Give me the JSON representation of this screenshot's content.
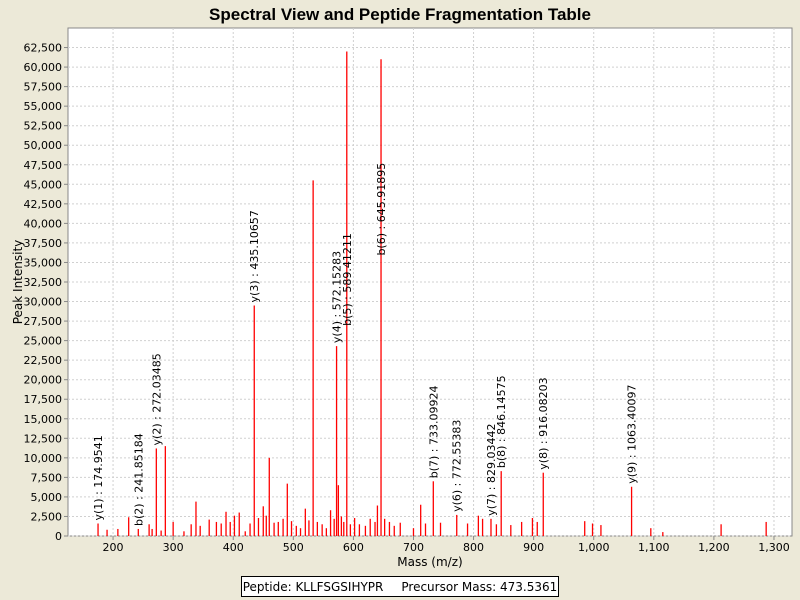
{
  "chart_data": {
    "type": "bar",
    "title": "Spectral View and Peptide Fragmentation Table",
    "xlabel": "Mass (m/z)",
    "ylabel": "Peak Intensity",
    "xlim": [
      125,
      1330
    ],
    "ylim": [
      0,
      65000
    ],
    "x_ticks": [
      200,
      300,
      400,
      500,
      600,
      700,
      800,
      900,
      1000,
      1100,
      1200,
      1300
    ],
    "x_tick_labels": [
      "200",
      "300",
      "400",
      "500",
      "600",
      "700",
      "800",
      "900",
      "1,000",
      "1,100",
      "1,200",
      "1,300"
    ],
    "y_ticks": [
      0,
      2500,
      5000,
      7500,
      10000,
      12500,
      15000,
      17500,
      20000,
      22500,
      25000,
      27500,
      30000,
      32500,
      35000,
      37500,
      40000,
      42500,
      45000,
      47500,
      50000,
      52500,
      55000,
      57500,
      60000,
      62500
    ],
    "y_tick_labels": [
      "0",
      "2,500",
      "5,000",
      "7,500",
      "10,000",
      "12,500",
      "15,000",
      "17,500",
      "20,000",
      "22,500",
      "25,000",
      "27,500",
      "30,000",
      "32,500",
      "35,000",
      "37,500",
      "40,000",
      "42,500",
      "45,000",
      "47,500",
      "50,000",
      "52,500",
      "55,000",
      "57,500",
      "60,000",
      "62,500"
    ],
    "grid": true,
    "series": [
      {
        "name": "peaks",
        "color": "#ff0000",
        "x": [
          175,
          190,
          208,
          226,
          242,
          260,
          265,
          272,
          280,
          287,
          300,
          318,
          330,
          338,
          345,
          360,
          372,
          380,
          388,
          395,
          402,
          410,
          420,
          428,
          435,
          442,
          450,
          455,
          460,
          468,
          475,
          483,
          490,
          497,
          505,
          512,
          520,
          526,
          533,
          540,
          548,
          555,
          562,
          568,
          572,
          575,
          580,
          584,
          589,
          595,
          602,
          610,
          620,
          628,
          636,
          640,
          646,
          652,
          660,
          668,
          678,
          700,
          712,
          720,
          733,
          745,
          772,
          790,
          808,
          815,
          829,
          838,
          846,
          862,
          880,
          898,
          906,
          916,
          985,
          998,
          1012,
          1063,
          1095,
          1115,
          1212,
          1287
        ],
        "values": [
          1600,
          800,
          900,
          2400,
          900,
          1500,
          900,
          11200,
          700,
          11500,
          1800,
          600,
          1500,
          4400,
          1300,
          2100,
          1800,
          1600,
          3100,
          1800,
          2600,
          3000,
          600,
          1600,
          29500,
          2300,
          3800,
          2600,
          10000,
          1700,
          1800,
          2200,
          6700,
          1900,
          1300,
          1000,
          3500,
          2000,
          45500,
          1800,
          1500,
          1000,
          3300,
          2200,
          24300,
          6500,
          2500,
          1800,
          62000,
          1500,
          2300,
          1500,
          1300,
          2200,
          1800,
          3900,
          61000,
          2200,
          1800,
          1300,
          1700,
          1000,
          4000,
          1600,
          7000,
          1700,
          2700,
          1600,
          2600,
          2200,
          2200,
          1500,
          8300,
          1400,
          1800,
          2300,
          1800,
          8100,
          1900,
          1600,
          1400,
          6300,
          1000,
          500,
          1500,
          1800
        ]
      }
    ],
    "annotations": [
      {
        "text": "y(1) : 174.9541",
        "x": 175,
        "y": 1600
      },
      {
        "text": "b(2) : 241.85184",
        "x": 242,
        "y": 900
      },
      {
        "text": "y(2) : 272.03485",
        "x": 272,
        "y": 11200
      },
      {
        "text": "y(3) : 435.10657",
        "x": 435,
        "y": 29500
      },
      {
        "text": "y(4) : 572.15283",
        "x": 572,
        "y": 24300
      },
      {
        "text": "b(5) : 589.41211",
        "x": 589,
        "y": 26500
      },
      {
        "text": "b(6) : 645.91895",
        "x": 646,
        "y": 35500
      },
      {
        "text": "b(7) : 733.09924",
        "x": 733,
        "y": 7000
      },
      {
        "text": "y(6) : 772.55383",
        "x": 772,
        "y": 2700
      },
      {
        "text": "y(7) : 829.03442",
        "x": 829,
        "y": 2200
      },
      {
        "text": "b(8) : 846.14575",
        "x": 846,
        "y": 8300
      },
      {
        "text": "y(8) : 916.08203",
        "x": 916,
        "y": 8100
      },
      {
        "text": "y(9) : 1063.40097",
        "x": 1063,
        "y": 6300
      }
    ],
    "legend": {
      "peptide": "Peptide: KLLFSGSIHYPR",
      "precursor": "Precursor Mass: 473.5361"
    }
  }
}
